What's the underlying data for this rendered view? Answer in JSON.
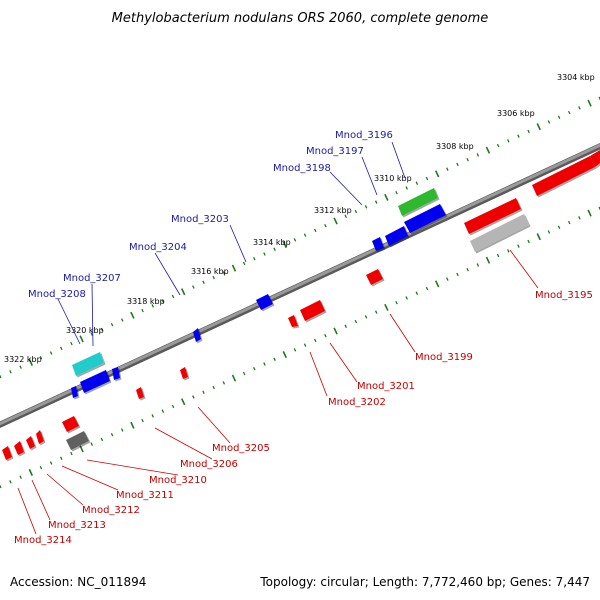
{
  "title": "Methylobacterium nodulans ORS 2060, complete genome",
  "footer": {
    "accession": "Accession: NC_011894",
    "summary": "Topology: circular; Length: 7,772,460 bp; Genes: 7,447"
  },
  "ticks": [
    "3304 kbp",
    "3306 kbp",
    "3308 kbp",
    "3310 kbp",
    "3312 kbp",
    "3314 kbp",
    "3316 kbp",
    "3318 kbp",
    "3320 kbp",
    "3322 kbp"
  ],
  "genes_forward": [
    "Mnod_3196",
    "Mnod_3197",
    "Mnod_3198",
    "Mnod_3203",
    "Mnod_3204",
    "Mnod_3207",
    "Mnod_3208"
  ],
  "genes_reverse": [
    "Mnod_3195",
    "Mnod_3199",
    "Mnod_3201",
    "Mnod_3202",
    "Mnod_3205",
    "Mnod_3206",
    "Mnod_3210",
    "Mnod_3211",
    "Mnod_3212",
    "Mnod_3213",
    "Mnod_3214"
  ],
  "colors": {
    "forward_label": "#1a1aa8",
    "reverse_label": "#c00000",
    "forward_gene": "#0000ee",
    "reverse_gene": "#ee0000",
    "backbone": "#7a7a7a",
    "ticks": "#1e7a1e",
    "rna_green": "#33bb33",
    "rna_cyan": "#22cccc",
    "pseudo_grey": "#b5b5b5",
    "dark_grey": "#555555"
  }
}
